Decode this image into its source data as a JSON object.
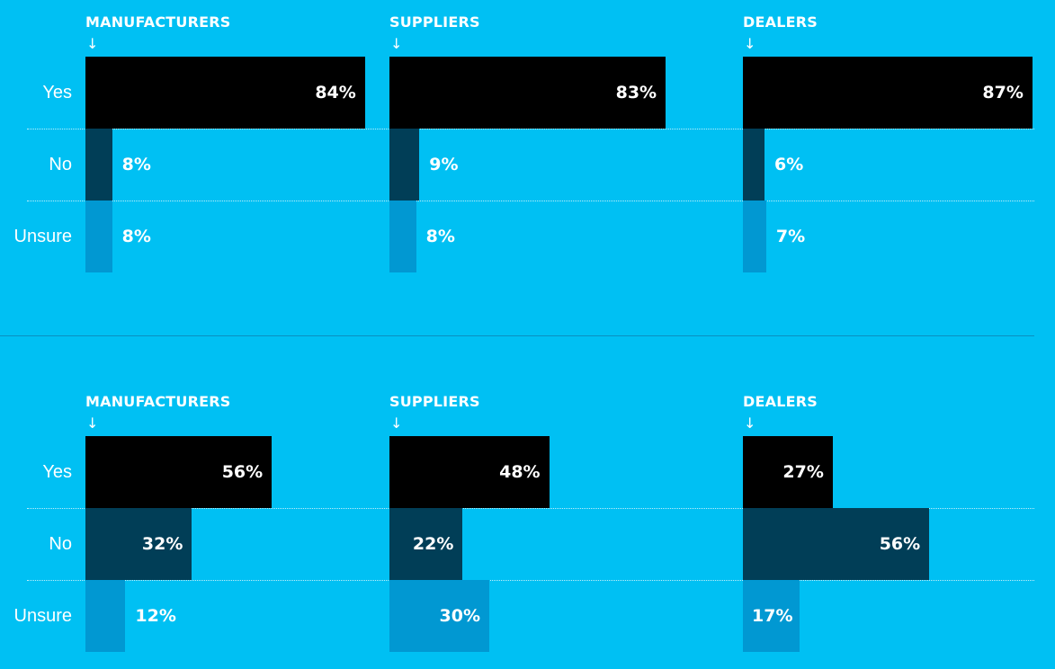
{
  "colors": {
    "background": "#00c0f3",
    "Yes": "#000000",
    "No": "#013e57",
    "Unsure": "#0198d2"
  },
  "arrow_glyph": "↓",
  "chart_data": [
    {
      "type": "bar",
      "orientation": "horizontal",
      "categories": [
        "Yes",
        "No",
        "Unsure"
      ],
      "xlim": [
        0,
        100
      ],
      "groups": [
        {
          "title": "MANUFACTURERS",
          "values": [
            84,
            8,
            8
          ],
          "labels": [
            "84%",
            "8%",
            "8%"
          ]
        },
        {
          "title": "SUPPLIERS",
          "values": [
            83,
            9,
            8
          ],
          "labels": [
            "83%",
            "9%",
            "8%"
          ]
        },
        {
          "title": "DEALERS",
          "values": [
            87,
            6,
            7
          ],
          "labels": [
            "87%",
            "6%",
            "7%"
          ]
        }
      ]
    },
    {
      "type": "bar",
      "orientation": "horizontal",
      "categories": [
        "Yes",
        "No",
        "Unsure"
      ],
      "xlim": [
        0,
        100
      ],
      "groups": [
        {
          "title": "MANUFACTURERS",
          "values": [
            56,
            32,
            12
          ],
          "labels": [
            "56%",
            "32%",
            "12%"
          ]
        },
        {
          "title": "SUPPLIERS",
          "values": [
            48,
            22,
            30
          ],
          "labels": [
            "48%",
            "22%",
            "30%"
          ]
        },
        {
          "title": "DEALERS",
          "values": [
            27,
            56,
            17
          ],
          "labels": [
            "27%",
            "56%",
            "17%"
          ]
        }
      ]
    }
  ]
}
